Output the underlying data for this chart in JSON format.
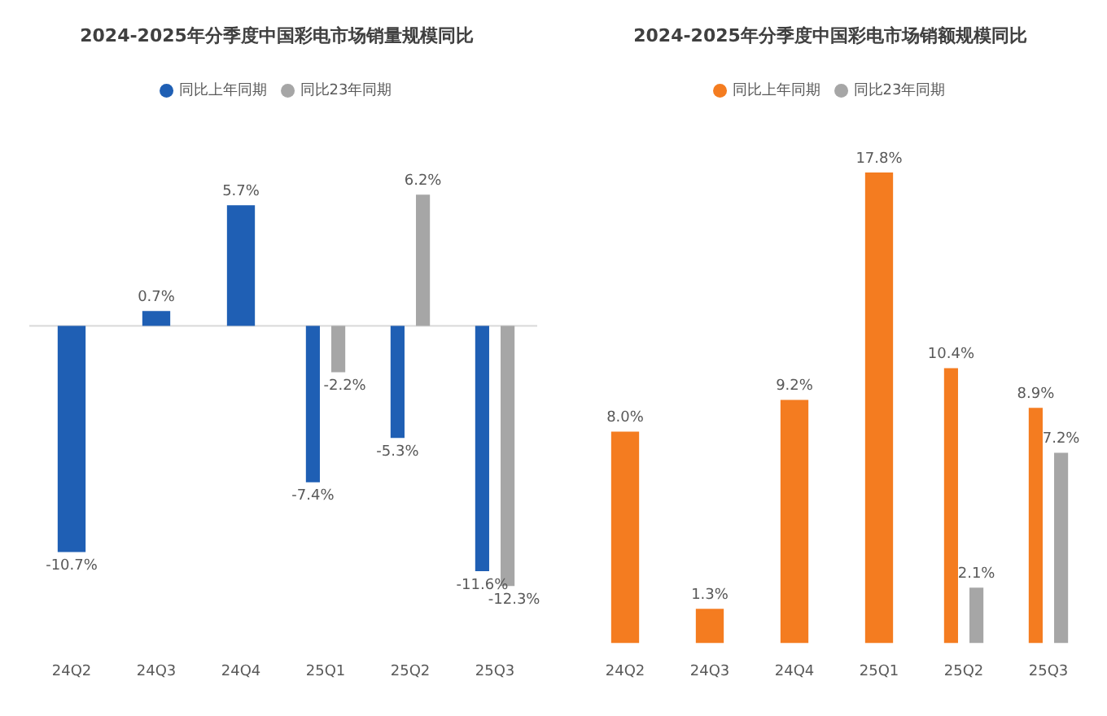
{
  "chart_data": [
    {
      "type": "bar",
      "title": "2024-2025年分季度中国彩电市场销量规模同比",
      "categories": [
        "24Q2",
        "24Q3",
        "24Q4",
        "25Q1",
        "25Q2",
        "25Q3"
      ],
      "legend": "top",
      "tick_labels": "x",
      "grid": false,
      "ref_lines": [
        {
          "axis": "y",
          "value": 0,
          "color": "#d9d9d9"
        }
      ],
      "series": [
        {
          "name": "同比上年同期",
          "color": "#1f5fb4",
          "values": [
            -10.7,
            0.7,
            5.7,
            -7.4,
            -5.3,
            -11.6
          ],
          "value_labels": [
            "-10.7%",
            "0.7%",
            "5.7%",
            "-7.4%",
            "-5.3%",
            "-11.6%"
          ]
        },
        {
          "name": "同比23年同期",
          "color": "#a6a6a6",
          "values": [
            null,
            null,
            null,
            -2.2,
            6.2,
            -12.3
          ],
          "value_labels": [
            null,
            null,
            null,
            "-2.2%",
            "6.2%",
            "-12.3%"
          ]
        }
      ]
    },
    {
      "type": "bar",
      "title": "2024-2025年分季度中国彩电市场销额规模同比",
      "categories": [
        "24Q2",
        "24Q3",
        "24Q4",
        "25Q1",
        "25Q2",
        "25Q3"
      ],
      "legend": "top",
      "tick_labels": "x",
      "grid": false,
      "series": [
        {
          "name": "同比上年同期",
          "color": "#f47c20",
          "values": [
            8.0,
            1.3,
            9.2,
            17.8,
            10.4,
            8.9
          ],
          "value_labels": [
            "8.0%",
            "1.3%",
            "9.2%",
            "17.8%",
            "10.4%",
            "8.9%"
          ]
        },
        {
          "name": "同比23年同期",
          "color": "#a6a6a6",
          "values": [
            null,
            null,
            null,
            null,
            2.1,
            7.2
          ],
          "value_labels": [
            null,
            null,
            null,
            null,
            "2.1%",
            "7.2%"
          ]
        }
      ]
    }
  ]
}
